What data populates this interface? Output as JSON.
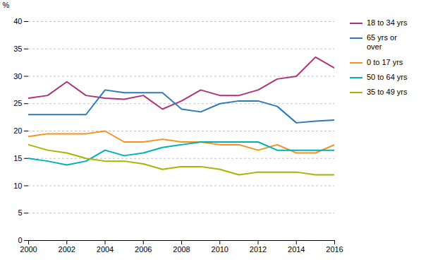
{
  "chart_data": {
    "type": "line",
    "ylabel": "%",
    "x": [
      2000,
      2001,
      2002,
      2003,
      2004,
      2005,
      2006,
      2007,
      2008,
      2009,
      2010,
      2011,
      2012,
      2013,
      2014,
      2015,
      2016
    ],
    "series": [
      {
        "name": "18 to 34 yrs",
        "color": "#b0317a",
        "values": [
          26.0,
          26.5,
          29.0,
          26.5,
          26.0,
          25.8,
          26.5,
          24.0,
          25.5,
          27.5,
          26.5,
          26.5,
          27.5,
          29.5,
          30.0,
          33.5,
          31.5
        ]
      },
      {
        "name": "65 yrs or\nover",
        "color": "#2b7bba",
        "values": [
          23.0,
          23.0,
          23.0,
          23.0,
          27.5,
          27.0,
          27.0,
          27.0,
          24.0,
          23.5,
          25.0,
          25.5,
          25.5,
          24.5,
          21.5,
          21.8,
          22.0
        ]
      },
      {
        "name": "0 to 17 yrs",
        "color": "#f5921e",
        "values": [
          19.0,
          19.5,
          19.5,
          19.5,
          20.0,
          18.0,
          18.0,
          18.5,
          18.0,
          18.0,
          17.5,
          17.5,
          16.5,
          17.5,
          16.0,
          16.0,
          17.5
        ]
      },
      {
        "name": "50 to 64 yrs",
        "color": "#00b2b2",
        "values": [
          15.0,
          14.5,
          13.8,
          14.5,
          16.5,
          15.5,
          16.0,
          17.0,
          17.5,
          18.0,
          18.0,
          18.0,
          18.0,
          16.5,
          16.5,
          16.5,
          16.5
        ]
      },
      {
        "name": "35 to 49 yrs",
        "color": "#a8b400",
        "values": [
          17.5,
          16.5,
          16.0,
          15.0,
          14.5,
          14.5,
          14.0,
          13.0,
          13.5,
          13.5,
          13.0,
          12.0,
          12.5,
          12.5,
          12.5,
          12.0,
          12.0
        ]
      }
    ],
    "xlim": [
      2000,
      2016
    ],
    "xticks": [
      2000,
      2002,
      2004,
      2006,
      2008,
      2010,
      2012,
      2014,
      2016
    ],
    "ylim": [
      0,
      40
    ],
    "yticks": [
      0,
      5,
      10,
      15,
      20,
      25,
      30,
      35,
      40
    ],
    "grid": true,
    "legend": "right"
  }
}
